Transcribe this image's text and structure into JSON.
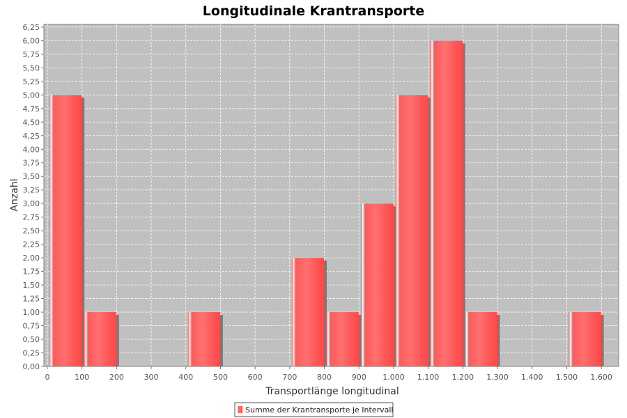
{
  "chart_data": {
    "type": "bar",
    "title": "Longitudinale Krantransporte",
    "xlabel": "Transportlänge longitudinal",
    "ylabel": "Anzahl",
    "xlim": [
      -10,
      1650
    ],
    "ylim": [
      0,
      6.3
    ],
    "x_ticks": [
      {
        "value": 0,
        "label": "0"
      },
      {
        "value": 100,
        "label": "100"
      },
      {
        "value": 200,
        "label": "200"
      },
      {
        "value": 300,
        "label": "300"
      },
      {
        "value": 400,
        "label": "400"
      },
      {
        "value": 500,
        "label": "500"
      },
      {
        "value": 600,
        "label": "600"
      },
      {
        "value": 700,
        "label": "700"
      },
      {
        "value": 800,
        "label": "800"
      },
      {
        "value": 900,
        "label": "900"
      },
      {
        "value": 1000,
        "label": "1.000"
      },
      {
        "value": 1100,
        "label": "1.100"
      },
      {
        "value": 1200,
        "label": "1.200"
      },
      {
        "value": 1300,
        "label": "1.300"
      },
      {
        "value": 1400,
        "label": "1.400"
      },
      {
        "value": 1500,
        "label": "1.500"
      },
      {
        "value": 1600,
        "label": "1.600"
      }
    ],
    "y_ticks": [
      {
        "value": 0,
        "label": "0,00"
      },
      {
        "value": 0.25,
        "label": "0,25"
      },
      {
        "value": 0.5,
        "label": "0,50"
      },
      {
        "value": 0.75,
        "label": "0,75"
      },
      {
        "value": 1,
        "label": "1,00"
      },
      {
        "value": 1.25,
        "label": "1,25"
      },
      {
        "value": 1.5,
        "label": "1,50"
      },
      {
        "value": 1.75,
        "label": "1,75"
      },
      {
        "value": 2,
        "label": "2,00"
      },
      {
        "value": 2.25,
        "label": "2,25"
      },
      {
        "value": 2.5,
        "label": "2,50"
      },
      {
        "value": 2.75,
        "label": "2,75"
      },
      {
        "value": 3,
        "label": "3,00"
      },
      {
        "value": 3.25,
        "label": "3,25"
      },
      {
        "value": 3.5,
        "label": "3,50"
      },
      {
        "value": 3.75,
        "label": "3,75"
      },
      {
        "value": 4,
        "label": "4,00"
      },
      {
        "value": 4.25,
        "label": "4,25"
      },
      {
        "value": 4.5,
        "label": "4,50"
      },
      {
        "value": 4.75,
        "label": "4,75"
      },
      {
        "value": 5,
        "label": "5,00"
      },
      {
        "value": 5.25,
        "label": "5,25"
      },
      {
        "value": 5.5,
        "label": "5,50"
      },
      {
        "value": 5.75,
        "label": "5,75"
      },
      {
        "value": 6,
        "label": "6,00"
      },
      {
        "value": 6.25,
        "label": "6,25"
      }
    ],
    "series": [
      {
        "name": "Summe der Krantransporte je Intervall",
        "color": "#ff5555",
        "bins": [
          {
            "start": 0,
            "end": 100,
            "value": 5
          },
          {
            "start": 100,
            "end": 200,
            "value": 1
          },
          {
            "start": 400,
            "end": 500,
            "value": 1
          },
          {
            "start": 700,
            "end": 800,
            "value": 2
          },
          {
            "start": 800,
            "end": 900,
            "value": 1
          },
          {
            "start": 900,
            "end": 1000,
            "value": 3
          },
          {
            "start": 1000,
            "end": 1100,
            "value": 5
          },
          {
            "start": 1100,
            "end": 1200,
            "value": 6
          },
          {
            "start": 1200,
            "end": 1300,
            "value": 1
          },
          {
            "start": 1500,
            "end": 1600,
            "value": 1
          }
        ]
      }
    ],
    "grid": true,
    "legend_position": "bottom-center",
    "plot_background": "#c0c0c0"
  }
}
